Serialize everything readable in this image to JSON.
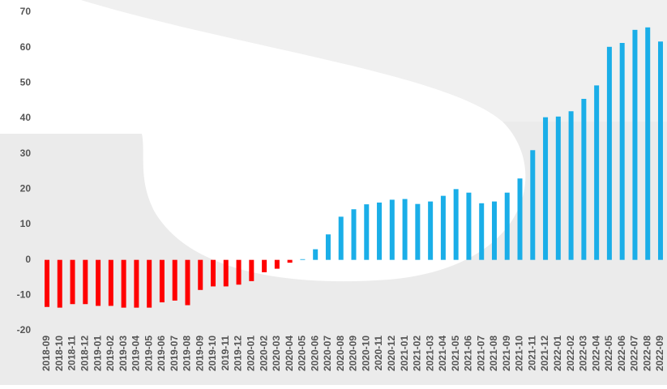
{
  "chart_data": {
    "type": "bar",
    "categories": [
      "2018-09",
      "2018-10",
      "2018-11",
      "2018-12",
      "2019-01",
      "2019-02",
      "2019-03",
      "2019-04",
      "2019-05",
      "2019-06",
      "2019-07",
      "2019-08",
      "2019-09",
      "2019-10",
      "2019-11",
      "2019-12",
      "2020-01",
      "2020-02",
      "2020-03",
      "2020-04",
      "2020-05",
      "2020-06",
      "2020-07",
      "2020-08",
      "2020-09",
      "2020-10",
      "2020-11",
      "2020-12",
      "2021-01",
      "2021-02",
      "2021-03",
      "2021-04",
      "2021-05",
      "2021-06",
      "2021-07",
      "2021-08",
      "2021-09",
      "2021-10",
      "2021-11",
      "2021-12",
      "2022-01",
      "2022-02",
      "2022-03",
      "2022-04",
      "2022-05",
      "2022-06",
      "2022-07",
      "2022-08",
      "2022-09"
    ],
    "values": [
      -13.3,
      -13.5,
      -12.5,
      -12.5,
      -13,
      -13,
      -13.5,
      -13.5,
      -13.5,
      -12,
      -11.5,
      -12.8,
      -8.5,
      -7.5,
      -7.5,
      -7,
      -6,
      -3.5,
      -2.5,
      -0.8,
      0.2,
      3,
      7.2,
      12.2,
      14.3,
      15.7,
      16.2,
      17,
      17.2,
      15.8,
      16.5,
      18.1,
      20,
      19,
      16,
      16.5,
      19,
      23,
      31,
      40.3,
      40.5,
      42,
      45.5,
      49.3,
      60.2,
      61.3,
      65,
      65.7,
      61.7
    ],
    "color_positive": "#1aaee8",
    "color_negative": "#ff0000",
    "ylim": [
      -20,
      70
    ],
    "yticks": [
      -20,
      -10,
      0,
      10,
      20,
      30,
      40,
      50,
      60,
      70
    ],
    "grid": false
  }
}
